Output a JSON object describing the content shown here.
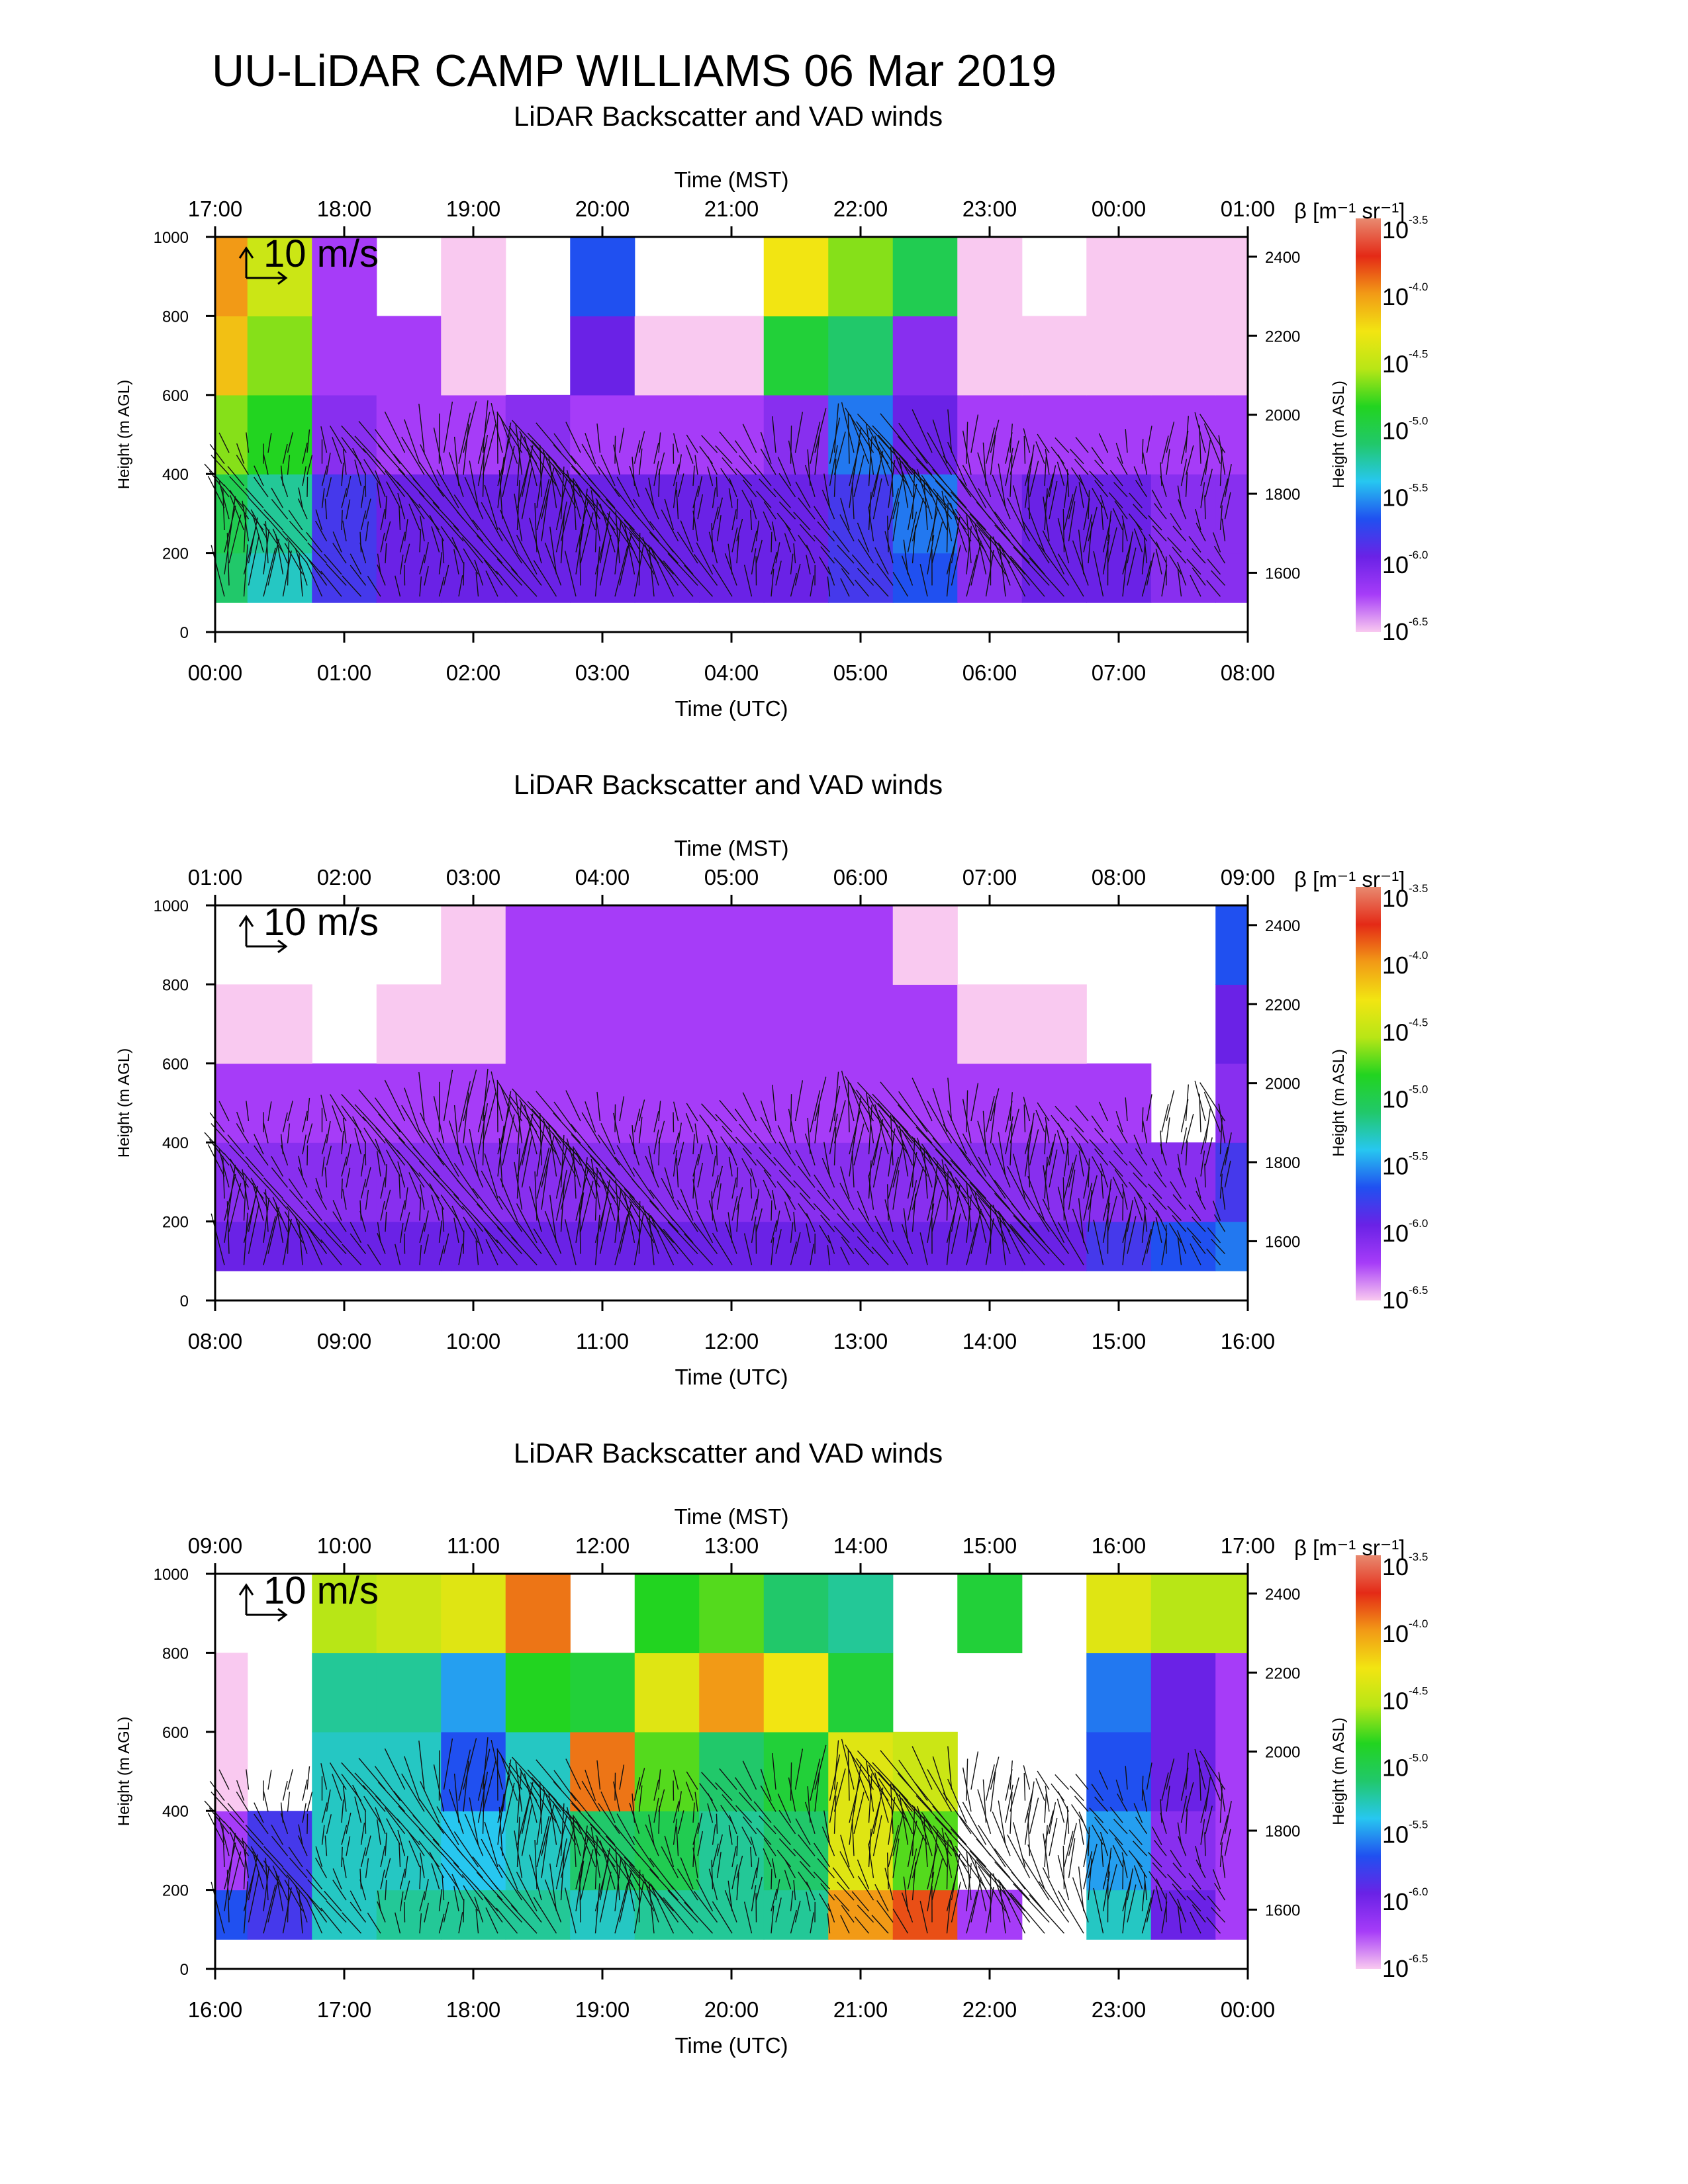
{
  "title": "UU-LiDAR CAMP WILLIAMS 06 Mar 2019",
  "colors": [
    "#f9c9f0",
    "#a63cf8",
    "#6a22e6",
    "#2050f0",
    "#27c7f0",
    "#21c86a",
    "#22d420",
    "#b8e616",
    "#f2e512",
    "#f29a16",
    "#e42a16",
    "#e88a70"
  ],
  "colorbar": {
    "label": "β [m⁻¹ sr⁻¹]",
    "base": "10",
    "exponents": [
      "-3.5",
      "-4.0",
      "-4.5",
      "-5.0",
      "-5.5",
      "-6.0",
      "-6.5"
    ]
  },
  "chart_data": [
    {
      "type": "heatmap",
      "title": "LiDAR Backscatter and VAD winds",
      "xlabel_top": "Time (MST)",
      "xlabel_bottom": "Time (UTC)",
      "ylabel_left": "Height (m AGL)",
      "ylabel_right": "Height (m ASL)",
      "mst_ticks": [
        "17:00",
        "18:00",
        "19:00",
        "20:00",
        "21:00",
        "22:00",
        "23:00",
        "00:00",
        "01:00"
      ],
      "utc_ticks": [
        "00:00",
        "01:00",
        "02:00",
        "03:00",
        "04:00",
        "05:00",
        "06:00",
        "07:00",
        "08:00"
      ],
      "y_left_ticks": [
        "0",
        "200",
        "400",
        "600",
        "800",
        "1000"
      ],
      "y_right_ticks": [
        "1600",
        "1800",
        "2000",
        "2200",
        "2400"
      ],
      "ylim_agl": [
        0,
        1000
      ],
      "scale_label": "10 m/s",
      "x_hours": [
        0,
        0.5,
        1,
        1.5,
        2,
        2.5,
        3,
        3.5,
        4,
        4.5,
        5,
        5.5,
        6,
        6.5,
        7,
        7.5,
        8
      ],
      "heights_agl": [
        100,
        300,
        500,
        700,
        900
      ],
      "log10_beta": [
        [
          -5.4,
          -5.6,
          -6.1,
          -6.2,
          -6.2,
          -6.2,
          -6.2,
          -6.2,
          -6.2,
          -6.2,
          -6.1,
          -6.0,
          -6.3,
          -6.2,
          -6.2,
          -6.3,
          -6.3
        ],
        [
          -5.3,
          -5.5,
          -6.1,
          -6.2,
          -6.2,
          -6.2,
          -6.2,
          -6.2,
          -6.2,
          -6.2,
          -6.1,
          -5.9,
          -6.3,
          -6.2,
          -6.2,
          -6.3,
          -6.3
        ],
        [
          -4.9,
          -5.1,
          -6.3,
          -6.4,
          -6.4,
          -6.3,
          -6.4,
          -6.4,
          -6.4,
          -6.3,
          -5.9,
          -6.2,
          -6.4,
          -6.4,
          -6.4,
          -6.4,
          -6.4
        ],
        [
          -4.4,
          -4.9,
          -6.4,
          -6.4,
          -6.5,
          null,
          -6.2,
          -6.5,
          -6.5,
          -5.2,
          -5.4,
          -6.3,
          -6.5,
          -6.5,
          -6.5,
          -6.5,
          -6.5
        ],
        [
          -4.3,
          -4.7,
          -6.4,
          null,
          -6.5,
          null,
          -6.0,
          null,
          null,
          -4.5,
          -4.9,
          -5.3,
          -6.5,
          null,
          -6.5,
          -6.5,
          -6.5
        ]
      ]
    },
    {
      "type": "heatmap",
      "title": "LiDAR Backscatter and VAD winds",
      "xlabel_top": "Time (MST)",
      "xlabel_bottom": "Time (UTC)",
      "ylabel_left": "Height (m AGL)",
      "ylabel_right": "Height (m ASL)",
      "mst_ticks": [
        "01:00",
        "02:00",
        "03:00",
        "04:00",
        "05:00",
        "06:00",
        "07:00",
        "08:00",
        "09:00"
      ],
      "utc_ticks": [
        "08:00",
        "09:00",
        "10:00",
        "11:00",
        "12:00",
        "13:00",
        "14:00",
        "15:00",
        "16:00"
      ],
      "y_left_ticks": [
        "0",
        "200",
        "400",
        "600",
        "800",
        "1000"
      ],
      "y_right_ticks": [
        "1600",
        "1800",
        "2000",
        "2200",
        "2400"
      ],
      "ylim_agl": [
        0,
        1000
      ],
      "scale_label": "10 m/s",
      "x_hours": [
        8,
        8.5,
        9,
        9.5,
        10,
        10.5,
        11,
        11.5,
        12,
        12.5,
        13,
        13.5,
        14,
        14.5,
        15,
        15.5,
        16
      ],
      "heights_agl": [
        100,
        300,
        500,
        700,
        900
      ],
      "log10_beta": [
        [
          -6.2,
          -6.2,
          -6.2,
          -6.2,
          -6.2,
          -6.2,
          -6.2,
          -6.2,
          -6.2,
          -6.2,
          -6.2,
          -6.2,
          -6.2,
          -6.2,
          -6.1,
          -6.0,
          -5.9
        ],
        [
          -6.3,
          -6.3,
          -6.3,
          -6.3,
          -6.3,
          -6.3,
          -6.3,
          -6.3,
          -6.3,
          -6.3,
          -6.3,
          -6.3,
          -6.3,
          -6.3,
          -6.3,
          -6.3,
          -6.1
        ],
        [
          -6.4,
          -6.4,
          -6.4,
          -6.4,
          -6.4,
          -6.4,
          -6.4,
          -6.4,
          -6.4,
          -6.4,
          -6.4,
          -6.4,
          -6.4,
          -6.4,
          -6.4,
          null,
          -6.3
        ],
        [
          -6.5,
          -6.5,
          null,
          -6.5,
          -6.5,
          -6.4,
          -6.4,
          -6.4,
          -6.4,
          -6.4,
          -6.4,
          -6.4,
          -6.5,
          -6.5,
          null,
          null,
          -6.2
        ],
        [
          null,
          null,
          null,
          null,
          -6.5,
          -6.4,
          -6.4,
          -6.4,
          -6.4,
          -6.4,
          -6.4,
          -6.5,
          null,
          null,
          null,
          null,
          -6.0
        ]
      ]
    },
    {
      "type": "heatmap",
      "title": "LiDAR Backscatter and VAD winds",
      "xlabel_top": "Time (MST)",
      "xlabel_bottom": "Time (UTC)",
      "ylabel_left": "Height (m AGL)",
      "ylabel_right": "Height (m ASL)",
      "mst_ticks": [
        "09:00",
        "10:00",
        "11:00",
        "12:00",
        "13:00",
        "14:00",
        "15:00",
        "16:00",
        "17:00"
      ],
      "utc_ticks": [
        "16:00",
        "17:00",
        "18:00",
        "19:00",
        "20:00",
        "21:00",
        "22:00",
        "23:00",
        "00:00"
      ],
      "y_left_ticks": [
        "0",
        "200",
        "400",
        "600",
        "800",
        "1000"
      ],
      "y_right_ticks": [
        "1600",
        "1800",
        "2000",
        "2200",
        "2400"
      ],
      "ylim_agl": [
        0,
        1000
      ],
      "scale_label": "10 m/s",
      "x_hours": [
        16,
        16.5,
        17,
        17.5,
        18,
        18.5,
        19,
        19.5,
        20,
        20.5,
        21,
        21.5,
        22,
        22.5,
        23,
        23.5,
        24
      ],
      "heights_agl": [
        100,
        300,
        500,
        700,
        900
      ],
      "log10_beta": [
        [
          -6.0,
          -6.1,
          -5.6,
          -5.5,
          -5.5,
          -5.5,
          -5.6,
          -5.5,
          -5.5,
          -5.5,
          -4.3,
          -4.1,
          -6.4,
          null,
          -5.6,
          -6.2,
          -6.4
        ],
        [
          -6.4,
          -6.1,
          -5.6,
          -5.6,
          -5.7,
          -5.6,
          -5.4,
          -5.3,
          -5.5,
          -5.4,
          -4.6,
          -5.0,
          null,
          null,
          -5.8,
          -6.3,
          -6.4
        ],
        [
          -6.5,
          null,
          -5.6,
          -5.6,
          -6.0,
          -5.6,
          -4.2,
          -5.0,
          -5.4,
          -5.2,
          -4.6,
          -4.7,
          null,
          null,
          -6.0,
          -6.2,
          -6.4
        ],
        [
          -6.5,
          null,
          -5.5,
          -5.5,
          -5.8,
          -5.1,
          -5.2,
          -4.6,
          -4.3,
          -4.5,
          -5.2,
          null,
          null,
          null,
          -5.9,
          -6.2,
          -6.4
        ],
        [
          null,
          null,
          -4.8,
          -4.7,
          -4.6,
          -4.2,
          null,
          -5.1,
          -5.0,
          -5.4,
          -5.5,
          null,
          -5.2,
          null,
          -4.6,
          -4.8,
          -4.8
        ]
      ]
    }
  ]
}
